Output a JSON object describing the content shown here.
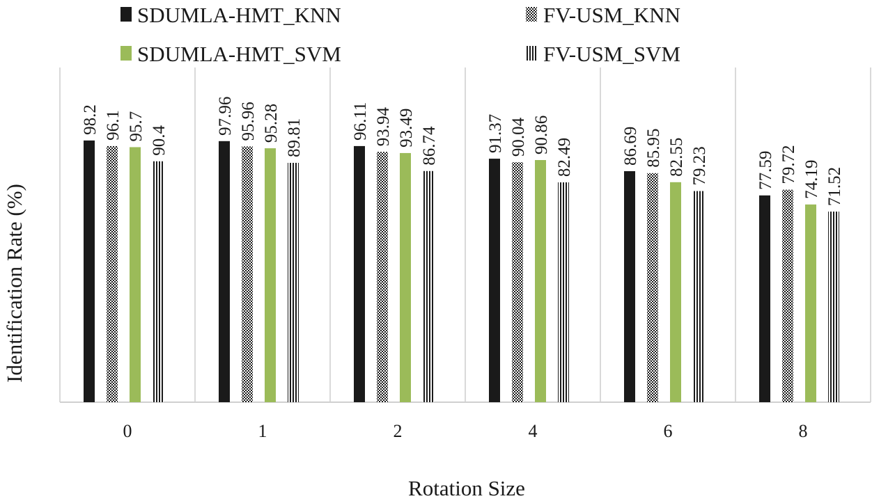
{
  "chart_data": {
    "type": "bar",
    "title": "",
    "xlabel": "Rotation Size",
    "ylabel": "Identification Rate  (%)",
    "categories": [
      "0",
      "1",
      "2",
      "4",
      "6",
      "8"
    ],
    "ylim": [
      0,
      100
    ],
    "series": [
      {
        "name": "SDUMLA-HMT_KNN",
        "pattern": "solid",
        "color": "#1a1a1a",
        "values": [
          98.2,
          97.96,
          96.11,
          91.37,
          86.69,
          77.59
        ]
      },
      {
        "name": "FV-USM_KNN",
        "pattern": "checker",
        "color": "#1a1a1a",
        "values": [
          96.1,
          95.96,
          93.94,
          90.04,
          85.95,
          79.72
        ]
      },
      {
        "name": "SDUMLA-HMT_SVM",
        "pattern": "solid",
        "color": "#9bbb59",
        "values": [
          95.7,
          95.28,
          93.49,
          90.86,
          82.55,
          74.19
        ]
      },
      {
        "name": "FV-USM_SVM",
        "pattern": "vstripes",
        "color": "#1a1a1a",
        "values": [
          90.4,
          89.81,
          86.74,
          82.49,
          79.23,
          71.52
        ]
      }
    ],
    "legend_position": "top"
  }
}
